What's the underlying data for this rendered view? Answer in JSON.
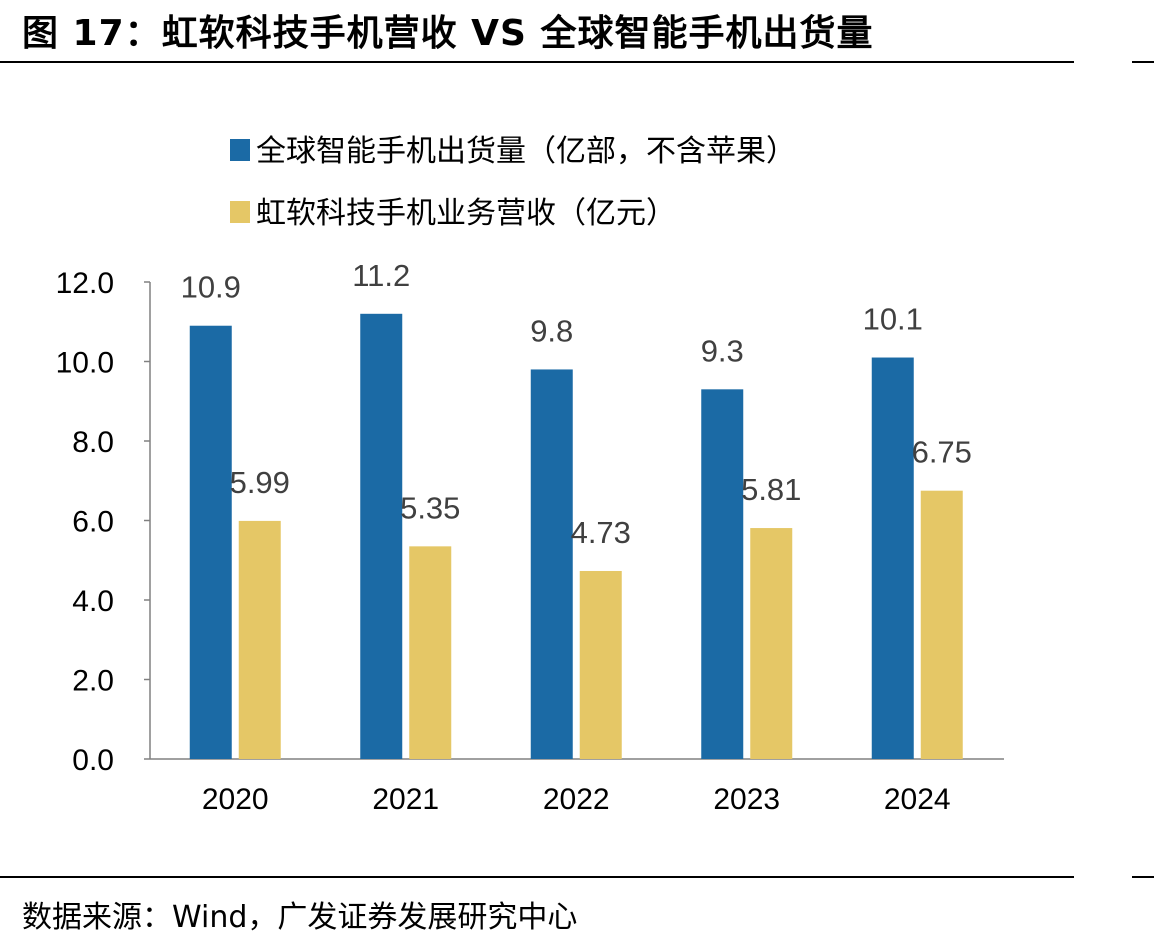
{
  "figure": {
    "title": "图 17：虹软科技手机营收 VS 全球智能手机出货量",
    "source": "数据来源：Wind，广发证券发展研究中心"
  },
  "chart_data": {
    "type": "bar",
    "categories": [
      "2020",
      "2021",
      "2022",
      "2023",
      "2024"
    ],
    "series": [
      {
        "name": "全球智能手机出货量（亿部，不含苹果）",
        "color": "#1B6AA5",
        "values": [
          10.9,
          11.2,
          9.8,
          9.3,
          10.1
        ],
        "labels": [
          "10.9",
          "11.2",
          "9.8",
          "9.3",
          "10.1"
        ]
      },
      {
        "name": "虹软科技手机业务营收（亿元）",
        "color": "#E5C766",
        "values": [
          5.99,
          5.35,
          4.73,
          5.81,
          6.75
        ],
        "labels": [
          "5.99",
          "5.35",
          "4.73",
          "5.81",
          "6.75"
        ]
      }
    ],
    "ylim": [
      0,
      12
    ],
    "yticks": [
      "0.0",
      "2.0",
      "4.0",
      "6.0",
      "8.0",
      "10.0",
      "12.0"
    ],
    "legend": "top-left",
    "grid": false
  }
}
